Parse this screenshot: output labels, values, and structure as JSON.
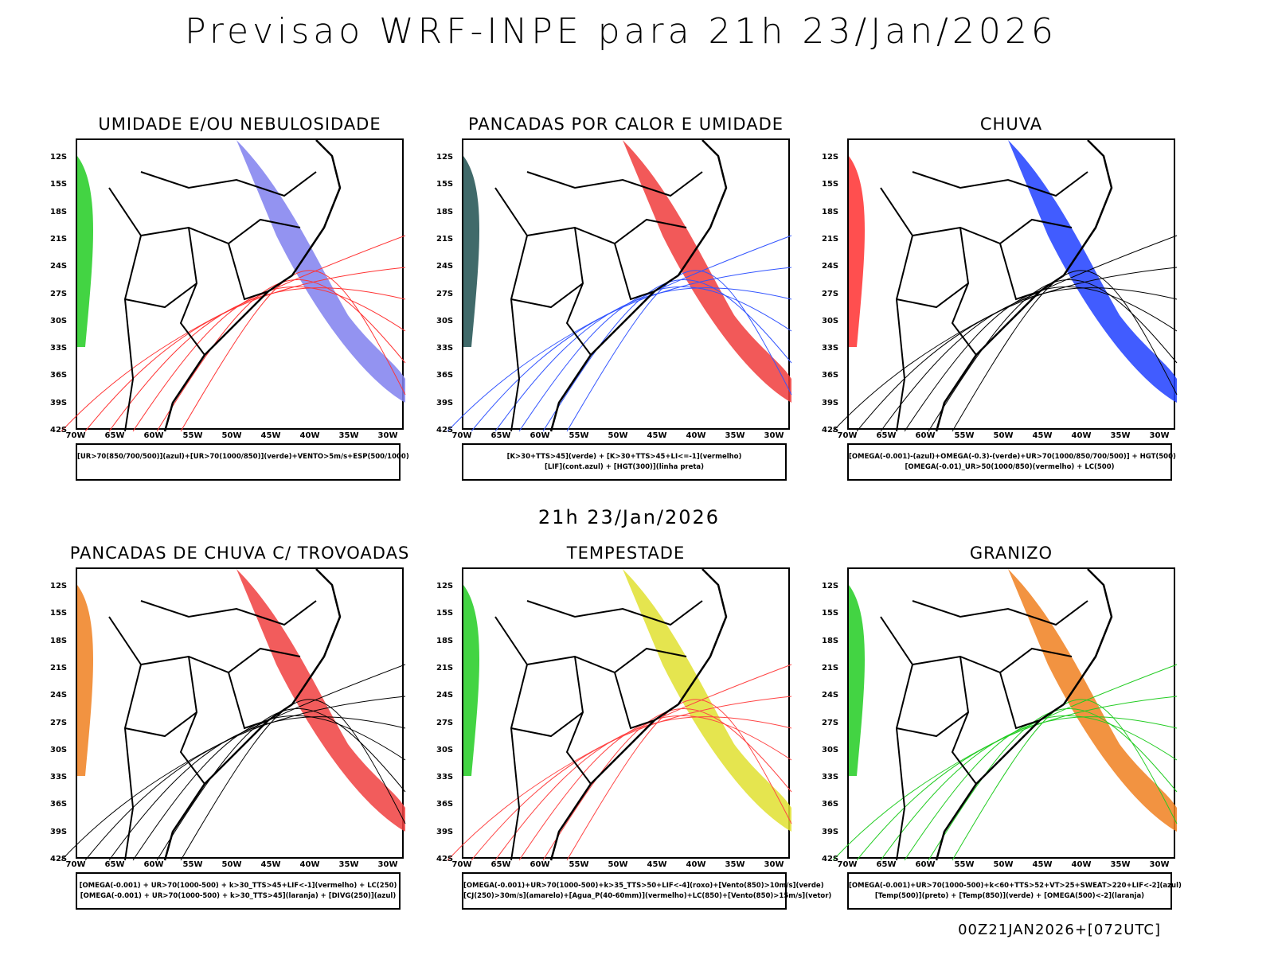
{
  "title": "Previsao WRF-INPE  para 21h 23/Jan/2026",
  "subtitle": "21h 23/Jan/2026",
  "footer": "00Z21JAN2026+[072UTC]",
  "lat_labels": [
    "12S",
    "15S",
    "18S",
    "21S",
    "24S",
    "27S",
    "30S",
    "33S",
    "36S",
    "39S",
    "42S"
  ],
  "lon_labels": [
    "70W",
    "65W",
    "60W",
    "55W",
    "50W",
    "45W",
    "40W",
    "35W",
    "30W"
  ],
  "panels": [
    {
      "title": "UMIDADE E/OU NEBULOSIDADE",
      "legend": [
        "[UR>70(850/700/500)](azul)+[UR>70(1000/850)](verde)+VENTO>5m/s+ESP(500/1000)"
      ],
      "fill": "#8080ee",
      "fill2": "#22cc22",
      "line": "#ff3333"
    },
    {
      "title": "PANCADAS POR CALOR E UMIDADE",
      "legend": [
        "[K>30+TTS>45](verde) + [K>30+TTS>45+LI<=-1](vermelho)",
        "[LIF](cont.azul) + [HGT(300)](linha preta)"
      ],
      "fill": "#f03c3c",
      "fill2": "#1e5050",
      "line": "#3355ff"
    },
    {
      "title": "CHUVA",
      "legend": [
        "[OMEGA(-0.001)-(azul)+OMEGA(-0.3)-(verde)+UR>70(1000/850/700/500)] + HGT(500)",
        "[OMEGA(-0.01)_UR>50(1000/850)(vermelho) + LC(500)"
      ],
      "fill": "#2040ff",
      "fill2": "#ff3030",
      "line": "#000000"
    },
    {
      "title": "PANCADAS DE CHUVA C/ TROVOADAS",
      "legend": [
        "[OMEGA(-0.001) + UR>70(1000-500) + k>30_TTS>45+LIF<-1](vermelho) + LC(250)",
        "[OMEGA(-0.001) + UR>70(1000-500) + k>30_TTS>45](laranja) + [DIVG(250)](azul)"
      ],
      "fill": "#f04040",
      "fill2": "#f08020",
      "line": "#000000"
    },
    {
      "title": "TEMPESTADE",
      "legend": [
        "[OMEGA(-0.001)+UR>70(1000-500)+k>35_TTS>50+LIF<-4](roxo)+[Vento(850)>10m/s](verde)",
        "[CJ(250)>30m/s](amarelo)+[Agua_P(40-60mm)](vermelho)+LC(850)+[Vento(850)>15m/s](vetor)"
      ],
      "fill": "#e0e030",
      "fill2": "#22cc22",
      "line": "#ff4444"
    },
    {
      "title": "GRANIZO",
      "legend": [
        "[OMEGA(-0.001)+UR>70(1000-500)+k<60+TTS>52+VT>25+SWEAT>220+LIF<-2](azul)",
        "[Temp(500)](preto) + [Temp(850)](verde) + [OMEGA(500)<-2](laranja)"
      ],
      "fill": "#f08020",
      "fill2": "#22cc22",
      "line": "#22cc22"
    }
  ]
}
